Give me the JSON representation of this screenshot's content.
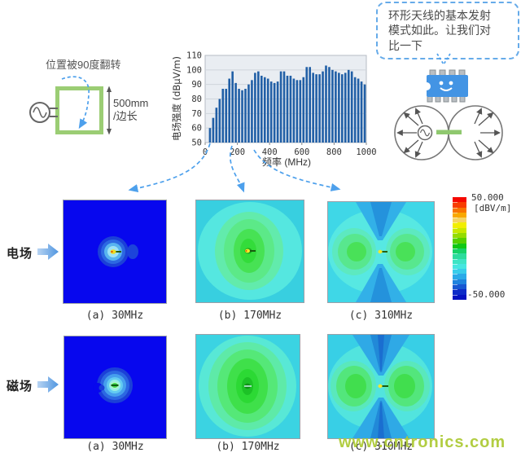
{
  "loop_diagram": {
    "caption": "位置被90度翻转",
    "dim_label": "500mm\n/边长"
  },
  "chart_data": {
    "type": "bar",
    "title": "",
    "ylabel": "电场强度 (dBμV/m)",
    "xlabel": "频率 (MHz)",
    "ylim": [
      50,
      110
    ],
    "xlim": [
      0,
      1000
    ],
    "yticks": [
      50,
      60,
      70,
      80,
      90,
      100,
      110
    ],
    "xticks": [
      0,
      200,
      400,
      600,
      800,
      1000
    ],
    "x_start_mhz": 30,
    "x_step_mhz": 20,
    "bar_color": "#215fa6",
    "grid": true,
    "values": [
      60,
      67,
      74,
      80,
      87,
      87,
      94,
      99,
      91,
      87,
      86,
      87,
      90,
      93,
      98,
      99,
      96,
      95,
      94,
      92,
      91,
      92,
      99,
      99,
      96,
      96,
      94,
      93,
      93,
      95,
      102,
      102,
      98,
      97,
      97,
      99,
      103,
      102,
      100,
      99,
      98,
      97,
      98,
      100,
      99,
      95,
      94,
      92,
      90
    ]
  },
  "speech_bubble": {
    "text": "环形天线的基本发射\n模式如此。让我们对\n比一下"
  },
  "icons": {
    "chip_icon": "smiling-ic-chip",
    "antenna_pattern_icon": "figure-eight-radiation-pattern",
    "ac_source_icon": "ac-source",
    "row_arrow_icon": "right-arrow"
  },
  "rows": [
    {
      "label": "电场",
      "plots": [
        {
          "caption": "(a) 30MHz"
        },
        {
          "caption": "(b) 170MHz"
        },
        {
          "caption": "(c) 310MHz"
        }
      ]
    },
    {
      "label": "磁场",
      "plots": [
        {
          "caption": "(a) 30MHz"
        },
        {
          "caption": "(b) 170MHz"
        },
        {
          "caption": "(c) 310MHz"
        }
      ]
    }
  ],
  "colorbar": {
    "max_label": "50.000",
    "unit_label": "[dBV/m]",
    "min_label": "-50.000"
  },
  "watermark": "www.cntronics.com",
  "colors": {
    "accent_blue": "#4da0ec",
    "bar_blue": "#215fa6",
    "loop_green": "#9bcd74",
    "chip_blue": "#4394e4",
    "watermark_green": "#aecb38",
    "field_bg_blue": "#0707ee",
    "field_bg_cyan": "#3bd3e2",
    "colorbar_top": "#f50800",
    "colorbar_bottom": "#0512c0"
  }
}
